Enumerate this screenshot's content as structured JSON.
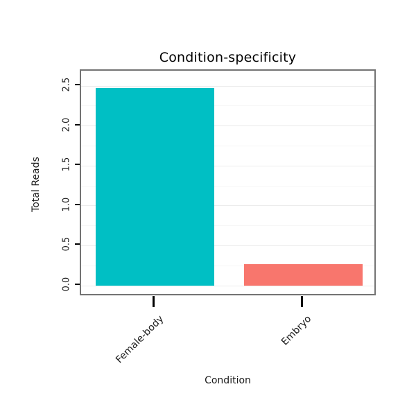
{
  "chart_data": {
    "type": "bar",
    "title": "Condition-specificity",
    "xlabel": "Condition",
    "ylabel": "Total Reads",
    "categories": [
      "Female-body",
      "Embryo"
    ],
    "values": [
      2.47,
      0.27
    ],
    "bar_colors": [
      "#00BFC4",
      "#F8766D"
    ],
    "ylim": [
      0,
      2.5
    ],
    "yticks": [
      0.0,
      0.5,
      1.0,
      1.5,
      2.0,
      2.5
    ],
    "ytick_labels": [
      "0.0",
      "0.5",
      "1.0",
      "1.5",
      "2.0",
      "2.5"
    ],
    "minor_gridlines": [
      0.25,
      0.75,
      1.25,
      1.75,
      2.25
    ],
    "grid": "horizontal",
    "legend": "none",
    "panel_border_color": "#737373",
    "grid_major_color": "#ebebeb",
    "grid_minor_color": "#f6f6f6"
  }
}
